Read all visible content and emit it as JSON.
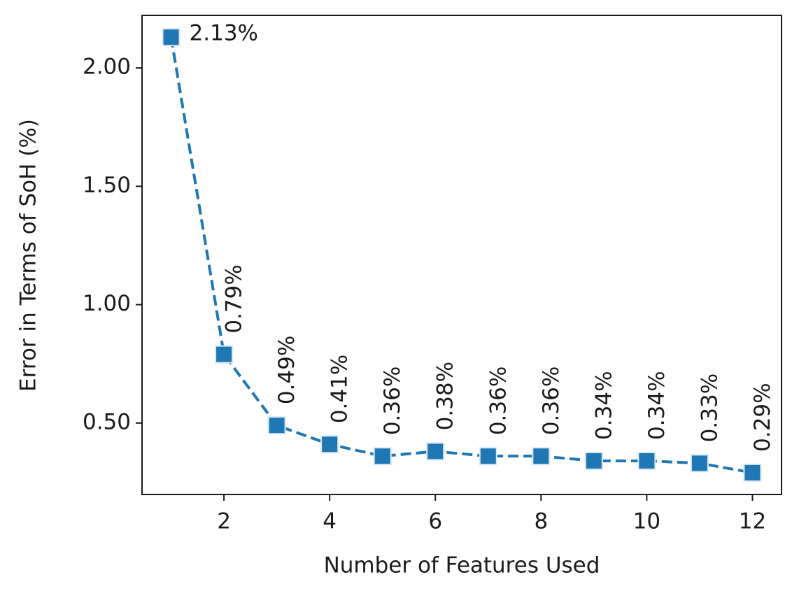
{
  "chart_data": {
    "type": "line",
    "x_label": "Number of Features Used",
    "y_label": "Error in Terms of SoH (%)",
    "x": [
      1,
      2,
      3,
      4,
      5,
      6,
      7,
      8,
      9,
      10,
      11,
      12
    ],
    "values": [
      2.13,
      0.79,
      0.49,
      0.41,
      0.36,
      0.38,
      0.36,
      0.36,
      0.34,
      0.34,
      0.33,
      0.29
    ],
    "value_labels": [
      "2.13%",
      "0.79%",
      "0.49%",
      "0.41%",
      "0.36%",
      "0.38%",
      "0.36%",
      "0.36%",
      "0.34%",
      "0.34%",
      "0.33%",
      "0.29%"
    ],
    "color": "#1f77b4",
    "xlim": [
      0.45,
      12.55
    ],
    "ylim": [
      0.198,
      2.222
    ],
    "xticks": [
      2,
      4,
      6,
      8,
      10,
      12
    ],
    "yticks": [
      {
        "value": 0.5,
        "label": "0.50"
      },
      {
        "value": 1.0,
        "label": "1.00"
      },
      {
        "value": 1.5,
        "label": "1.50"
      },
      {
        "value": 2.0,
        "label": "2.00"
      }
    ],
    "grid": false
  }
}
